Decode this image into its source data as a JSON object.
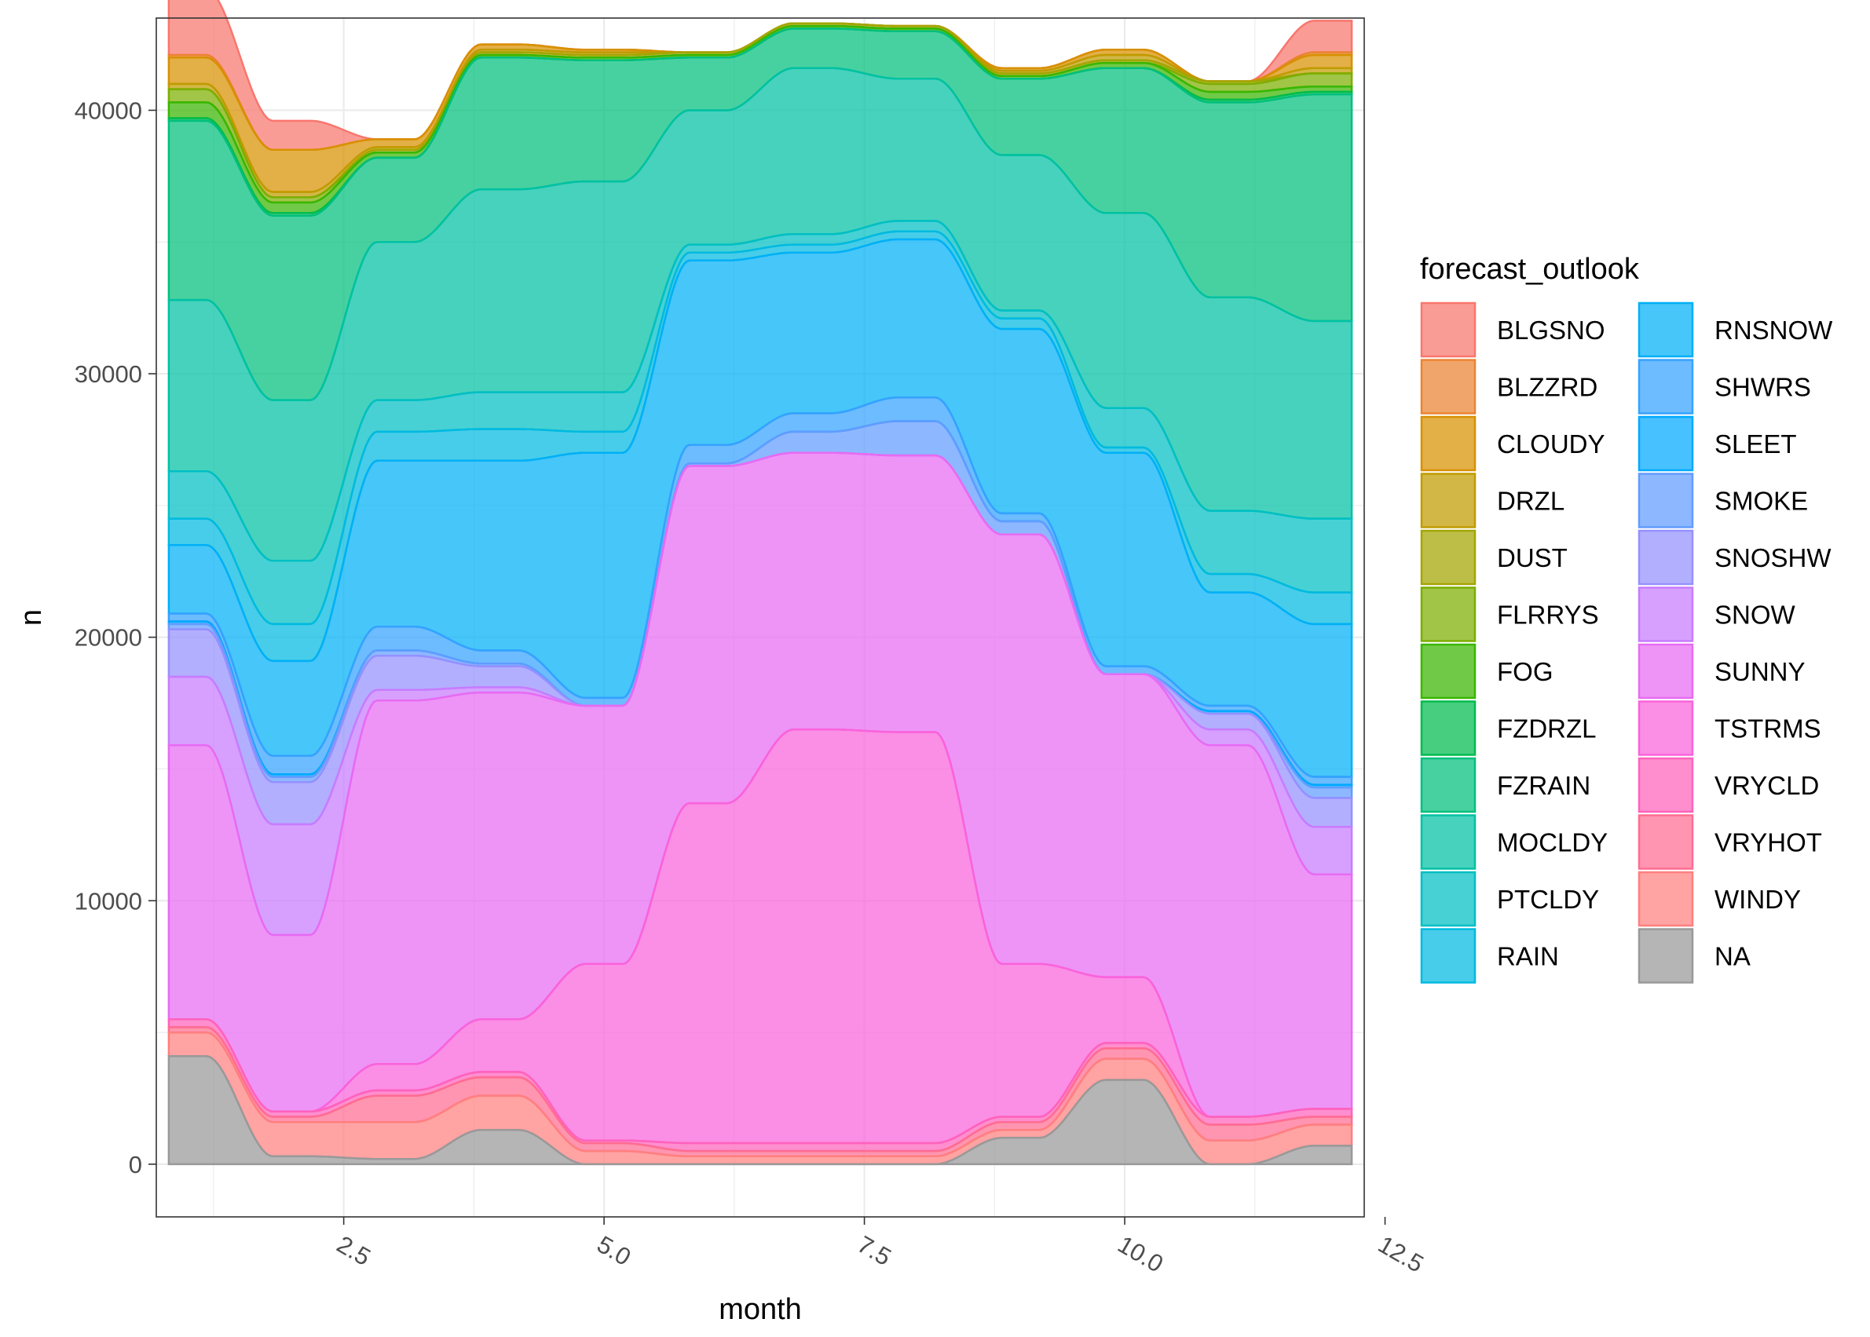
{
  "chart_data": {
    "type": "area",
    "title": "",
    "xlabel": "month",
    "ylabel": "n",
    "xlim": [
      0.7,
      12.3
    ],
    "ylim": [
      -2000,
      43500
    ],
    "x_ticks": [
      {
        "value": 2.5,
        "label": "2.5"
      },
      {
        "value": 5.0,
        "label": "5.0"
      },
      {
        "value": 7.5,
        "label": "7.5"
      },
      {
        "value": 10.0,
        "label": "10.0"
      },
      {
        "value": 12.5,
        "label": "12.5"
      }
    ],
    "y_ticks": [
      {
        "value": 0,
        "label": "0"
      },
      {
        "value": 10000,
        "label": "10000"
      },
      {
        "value": 20000,
        "label": "20000"
      },
      {
        "value": 30000,
        "label": "30000"
      },
      {
        "value": 40000,
        "label": "40000"
      }
    ],
    "grid": true,
    "legend_title": "forecast_outlook",
    "legend_position": "right",
    "legend_columns": 2,
    "x": [
      1,
      2,
      3,
      4,
      5,
      6,
      7,
      8,
      9,
      10,
      11,
      12
    ],
    "series": [
      {
        "name": "BLGSNO",
        "color": "#F8766D",
        "values": [
          2500,
          1100,
          0,
          0,
          0,
          0,
          0,
          0,
          0,
          0,
          0,
          1200
        ]
      },
      {
        "name": "BLZZRD",
        "color": "#EA8331",
        "values": [
          100,
          0,
          0,
          0,
          0,
          0,
          0,
          0,
          0,
          0,
          0,
          100
        ]
      },
      {
        "name": "CLOUDY",
        "color": "#D89000",
        "values": [
          1000,
          1600,
          300,
          200,
          100,
          0,
          0,
          0,
          100,
          200,
          0,
          500
        ]
      },
      {
        "name": "DRZL",
        "color": "#C09B00",
        "values": [
          200,
          200,
          100,
          100,
          100,
          0,
          0,
          0,
          100,
          200,
          0,
          200
        ]
      },
      {
        "name": "DUST",
        "color": "#A3A500",
        "values": [
          0,
          0,
          100,
          100,
          100,
          100,
          100,
          100,
          100,
          100,
          100,
          0
        ]
      },
      {
        "name": "FLRRYS",
        "color": "#7CAE00",
        "values": [
          500,
          200,
          0,
          0,
          0,
          0,
          0,
          0,
          0,
          0,
          300,
          500
        ]
      },
      {
        "name": "FOG",
        "color": "#39B600",
        "values": [
          600,
          400,
          200,
          100,
          100,
          100,
          100,
          100,
          100,
          200,
          300,
          200
        ]
      },
      {
        "name": "FZDRZL",
        "color": "#00BB4E",
        "values": [
          100,
          100,
          0,
          0,
          0,
          0,
          0,
          0,
          0,
          0,
          100,
          100
        ]
      },
      {
        "name": "FZRAIN",
        "color": "#00BF7D",
        "values": [
          6800,
          7000,
          3200,
          5000,
          4600,
          2000,
          1500,
          1800,
          2900,
          5500,
          7400,
          8600
        ]
      },
      {
        "name": "MOCLDY",
        "color": "#00C1A3",
        "values": [
          6500,
          6100,
          6000,
          7700,
          8000,
          5100,
          6300,
          5400,
          5900,
          7400,
          8100,
          7500
        ]
      },
      {
        "name": "PTCLDY",
        "color": "#00BFC4",
        "values": [
          1800,
          2400,
          1200,
          1400,
          1500,
          300,
          400,
          400,
          300,
          1500,
          2400,
          2800
        ]
      },
      {
        "name": "RAIN",
        "color": "#00BAE0",
        "values": [
          1000,
          1400,
          1100,
          1200,
          800,
          300,
          300,
          300,
          400,
          200,
          700,
          1200
        ]
      },
      {
        "name": "RNSNOW",
        "color": "#00B0F6",
        "values": [
          2600,
          3600,
          6300,
          7200,
          9300,
          7000,
          6100,
          6000,
          7000,
          8100,
          4300,
          5800
        ]
      },
      {
        "name": "SHWRS",
        "color": "#35A2FF",
        "values": [
          300,
          700,
          900,
          500,
          300,
          700,
          700,
          900,
          300,
          300,
          200,
          300
        ]
      },
      {
        "name": "SLEET",
        "color": "#00A9FF",
        "values": [
          100,
          100,
          0,
          0,
          0,
          0,
          0,
          0,
          0,
          0,
          100,
          100
        ]
      },
      {
        "name": "SMOKE",
        "color": "#619CFF",
        "values": [
          200,
          200,
          200,
          100,
          0,
          100,
          800,
          1300,
          500,
          0,
          0,
          400
        ]
      },
      {
        "name": "SNOSHW",
        "color": "#9590FF",
        "values": [
          1800,
          1600,
          1300,
          800,
          0,
          0,
          0,
          0,
          0,
          0,
          600,
          1100
        ]
      },
      {
        "name": "SNOW",
        "color": "#C77CFF",
        "values": [
          2600,
          4200,
          400,
          200,
          0,
          0,
          0,
          0,
          0,
          0,
          600,
          1800
        ]
      },
      {
        "name": "SUNNY",
        "color": "#E76BF3",
        "values": [
          10400,
          6700,
          13800,
          12400,
          9800,
          12800,
          10500,
          10500,
          16300,
          11500,
          14100,
          8900
        ]
      },
      {
        "name": "TSTRMS",
        "color": "#FA62DB",
        "values": [
          0,
          0,
          1000,
          2000,
          6700,
          12900,
          15700,
          15600,
          5800,
          2500,
          0,
          0
        ]
      },
      {
        "name": "VRYCLD",
        "color": "#FF62BC",
        "values": [
          300,
          200,
          200,
          200,
          100,
          300,
          300,
          300,
          200,
          200,
          300,
          300
        ]
      },
      {
        "name": "VRYHOT",
        "color": "#FF6C91",
        "values": [
          200,
          200,
          1000,
          700,
          300,
          200,
          200,
          200,
          300,
          400,
          600,
          300
        ]
      },
      {
        "name": "WINDY",
        "color": "#FF7F7F",
        "values": [
          900,
          1300,
          1400,
          1300,
          500,
          300,
          300,
          300,
          300,
          800,
          900,
          800
        ]
      },
      {
        "name": "NA",
        "color": "#999999",
        "values": [
          4100,
          300,
          200,
          1300,
          0,
          0,
          0,
          0,
          1000,
          3200,
          0,
          700
        ]
      }
    ]
  }
}
